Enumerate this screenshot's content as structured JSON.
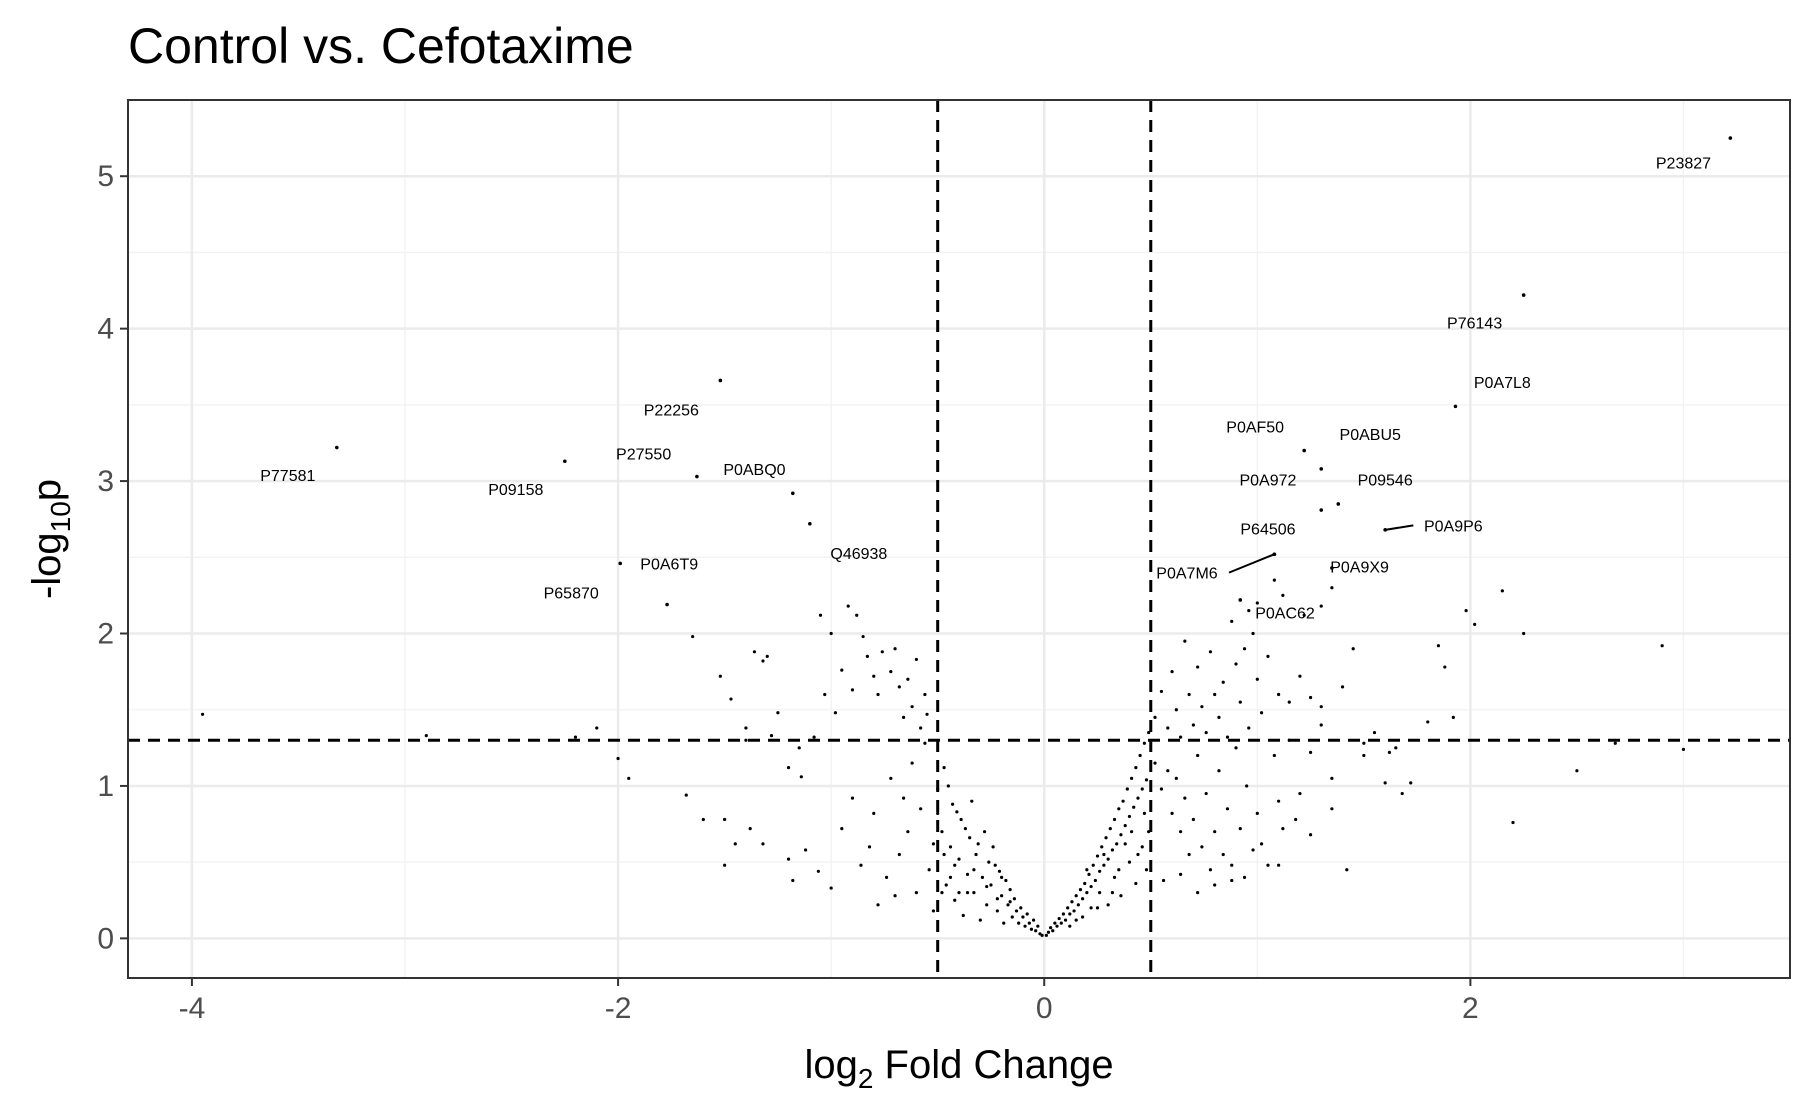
{
  "title": "Control vs. Cefotaxime",
  "chart_data": {
    "type": "scatter",
    "title": "Control vs. Cefotaxime",
    "xlabel_main": "log",
    "xlabel_sub": "2",
    "xlabel_rest": " Fold Change",
    "ylabel_main": "-log",
    "ylabel_sub": "10",
    "ylabel_rest": "p",
    "xlim": [
      -4.3,
      3.5
    ],
    "ylim": [
      -0.26,
      5.5
    ],
    "x_ticks": [
      -4,
      -2,
      0,
      2
    ],
    "x_tick_labels": [
      "-4",
      "-2",
      "0",
      "2"
    ],
    "y_ticks": [
      0,
      1,
      2,
      3,
      4,
      5
    ],
    "y_tick_labels": [
      "0",
      "1",
      "2",
      "3",
      "4",
      "5"
    ],
    "grid": true,
    "thresholds": {
      "x": [
        -0.5,
        0.5
      ],
      "y": 1.3
    },
    "labeled_points": [
      {
        "label": "P23827",
        "x": 3.22,
        "y": 5.25,
        "lx": 3.0,
        "ly": 5.05
      },
      {
        "label": "P76143",
        "x": 2.25,
        "y": 4.22,
        "lx": 2.02,
        "ly": 4.0
      },
      {
        "label": "P0A7L8",
        "x": 1.93,
        "y": 3.49,
        "lx": 2.15,
        "ly": 3.61
      },
      {
        "label": "P22256",
        "x": -1.52,
        "y": 3.66,
        "lx": -1.75,
        "ly": 3.43
      },
      {
        "label": "P77581",
        "x": -3.32,
        "y": 3.22,
        "lx": -3.55,
        "ly": 3.0
      },
      {
        "label": "P09158",
        "x": -2.25,
        "y": 3.13,
        "lx": -2.48,
        "ly": 2.91
      },
      {
        "label": "P27550",
        "x": -1.63,
        "y": 3.03,
        "lx": -1.88,
        "ly": 3.14
      },
      {
        "label": "P0ABQ0",
        "x": -1.18,
        "y": 2.92,
        "lx": -1.36,
        "ly": 3.04
      },
      {
        "label": "Q46938",
        "x": -1.1,
        "y": 2.72,
        "lx": -0.87,
        "ly": 2.49
      },
      {
        "label": "P0A6T9",
        "x": -1.99,
        "y": 2.46,
        "lx": -1.76,
        "ly": 2.42
      },
      {
        "label": "P65870",
        "x": -1.77,
        "y": 2.19,
        "lx": -2.22,
        "ly": 2.23
      },
      {
        "label": "P0AF50",
        "x": 1.22,
        "y": 3.2,
        "lx": 0.99,
        "ly": 3.32
      },
      {
        "label": "P0ABU5",
        "x": 1.3,
        "y": 3.08,
        "lx": 1.53,
        "ly": 3.27
      },
      {
        "label": "P0A972",
        "x": 1.3,
        "y": 2.81,
        "lx": 1.05,
        "ly": 2.97
      },
      {
        "label": "P09546",
        "x": 1.38,
        "y": 2.85,
        "lx": 1.6,
        "ly": 2.97
      },
      {
        "label": "P64506",
        "x": 1.08,
        "y": 2.52,
        "lx": 1.05,
        "ly": 2.65
      },
      {
        "label": "P0A9P6",
        "x": 1.6,
        "y": 2.68,
        "lx": 1.92,
        "ly": 2.67
      },
      {
        "label": "P0A7M6",
        "x": 1.08,
        "y": 2.52,
        "lx": 0.67,
        "ly": 2.36,
        "leader": true
      },
      {
        "label": "P0A9X9",
        "x": 1.35,
        "y": 2.43,
        "lx": 1.48,
        "ly": 2.4
      },
      {
        "label": "P0AC62",
        "x": 0.92,
        "y": 2.22,
        "lx": 1.13,
        "ly": 2.1
      }
    ],
    "points": [
      [
        -3.95,
        1.47
      ],
      [
        -2.9,
        1.33
      ],
      [
        -2.1,
        1.38
      ],
      [
        -2.2,
        1.32
      ],
      [
        -2.0,
        1.18
      ],
      [
        -1.95,
        1.05
      ],
      [
        -1.68,
        0.94
      ],
      [
        -1.6,
        0.78
      ],
      [
        -1.65,
        1.98
      ],
      [
        -1.52,
        1.72
      ],
      [
        -1.47,
        1.57
      ],
      [
        -1.4,
        1.38
      ],
      [
        -1.36,
        1.88
      ],
      [
        -1.32,
        1.82
      ],
      [
        -1.3,
        1.85
      ],
      [
        -1.28,
        1.33
      ],
      [
        -1.4,
        1.3
      ],
      [
        -1.25,
        1.48
      ],
      [
        -1.2,
        1.12
      ],
      [
        -1.15,
        1.25
      ],
      [
        -1.14,
        1.06
      ],
      [
        -1.08,
        1.32
      ],
      [
        -1.05,
        2.12
      ],
      [
        -1.03,
        1.6
      ],
      [
        -1.0,
        2.0
      ],
      [
        -0.98,
        1.48
      ],
      [
        -0.95,
        1.76
      ],
      [
        -0.92,
        2.18
      ],
      [
        -0.9,
        1.63
      ],
      [
        -0.88,
        2.12
      ],
      [
        -0.85,
        1.98
      ],
      [
        -0.83,
        1.85
      ],
      [
        -0.8,
        1.72
      ],
      [
        -0.78,
        1.6
      ],
      [
        -0.76,
        1.88
      ],
      [
        -0.72,
        1.75
      ],
      [
        -0.7,
        1.9
      ],
      [
        -0.68,
        1.65
      ],
      [
        -0.66,
        1.45
      ],
      [
        -0.64,
        1.7
      ],
      [
        -0.62,
        1.52
      ],
      [
        -0.6,
        1.83
      ],
      [
        -0.58,
        1.38
      ],
      [
        -0.56,
        1.6
      ],
      [
        -0.55,
        1.47
      ],
      [
        -1.5,
        0.78
      ],
      [
        -1.45,
        0.62
      ],
      [
        -1.5,
        0.48
      ],
      [
        -1.38,
        0.72
      ],
      [
        -1.32,
        0.62
      ],
      [
        -1.2,
        0.52
      ],
      [
        -1.18,
        0.38
      ],
      [
        -1.12,
        0.58
      ],
      [
        -1.06,
        0.44
      ],
      [
        -1.0,
        0.33
      ],
      [
        -0.95,
        0.72
      ],
      [
        -0.9,
        0.92
      ],
      [
        -0.86,
        0.48
      ],
      [
        -0.82,
        0.6
      ],
      [
        -0.8,
        0.82
      ],
      [
        -0.78,
        0.22
      ],
      [
        -0.74,
        0.4
      ],
      [
        -0.72,
        1.05
      ],
      [
        -0.7,
        0.28
      ],
      [
        -0.68,
        0.55
      ],
      [
        -0.66,
        0.92
      ],
      [
        -0.64,
        0.7
      ],
      [
        -0.62,
        1.15
      ],
      [
        -0.6,
        0.3
      ],
      [
        -0.58,
        0.85
      ],
      [
        -0.56,
        1.28
      ],
      [
        -0.54,
        0.45
      ],
      [
        -0.52,
        0.18
      ],
      [
        -0.5,
        0.98
      ],
      [
        -0.48,
        0.7
      ],
      [
        -0.47,
        1.12
      ],
      [
        -0.46,
        0.35
      ],
      [
        -0.44,
        0.6
      ],
      [
        -0.43,
        0.88
      ],
      [
        -0.42,
        0.25
      ],
      [
        -0.4,
        0.52
      ],
      [
        -0.39,
        0.78
      ],
      [
        -0.38,
        0.15
      ],
      [
        -0.36,
        0.42
      ],
      [
        -0.35,
        0.66
      ],
      [
        -0.34,
        0.9
      ],
      [
        -0.33,
        0.3
      ],
      [
        -0.32,
        0.55
      ],
      [
        -0.3,
        0.12
      ],
      [
        -0.29,
        0.4
      ],
      [
        -0.28,
        0.7
      ],
      [
        -0.27,
        0.22
      ],
      [
        -0.26,
        0.5
      ],
      [
        -0.25,
        0.35
      ],
      [
        -0.24,
        0.6
      ],
      [
        -0.22,
        0.18
      ],
      [
        -0.21,
        0.44
      ],
      [
        -0.2,
        0.28
      ],
      [
        -0.19,
        0.1
      ],
      [
        -0.18,
        0.38
      ],
      [
        -0.17,
        0.22
      ],
      [
        -0.16,
        0.32
      ],
      [
        -0.15,
        0.14
      ],
      [
        -0.14,
        0.26
      ],
      [
        -0.13,
        0.18
      ],
      [
        -0.12,
        0.1
      ],
      [
        -0.11,
        0.2
      ],
      [
        -0.1,
        0.14
      ],
      [
        -0.09,
        0.08
      ],
      [
        -0.08,
        0.16
      ],
      [
        -0.07,
        0.1
      ],
      [
        -0.06,
        0.06
      ],
      [
        -0.05,
        0.12
      ],
      [
        -0.04,
        0.05
      ],
      [
        -0.03,
        0.08
      ],
      [
        -0.02,
        0.03
      ],
      [
        -0.01,
        0.02
      ],
      [
        -0.45,
        1.0
      ],
      [
        -0.41,
        0.83
      ],
      [
        -0.37,
        0.72
      ],
      [
        -0.31,
        0.62
      ],
      [
        -0.23,
        0.48
      ],
      [
        -0.2,
        0.4
      ],
      [
        -0.16,
        0.24
      ],
      [
        -0.36,
        0.3
      ],
      [
        -0.42,
        0.48
      ],
      [
        -0.48,
        0.3
      ],
      [
        -0.52,
        0.62
      ],
      [
        -0.5,
        0.82
      ],
      [
        -0.47,
        0.55
      ],
      [
        -0.44,
        0.4
      ],
      [
        -0.4,
        0.3
      ],
      [
        -0.33,
        0.45
      ],
      [
        -0.27,
        0.34
      ],
      [
        -0.22,
        0.26
      ],
      [
        0.01,
        0.02
      ],
      [
        0.02,
        0.04
      ],
      [
        0.03,
        0.07
      ],
      [
        0.04,
        0.05
      ],
      [
        0.05,
        0.1
      ],
      [
        0.06,
        0.08
      ],
      [
        0.07,
        0.13
      ],
      [
        0.08,
        0.1
      ],
      [
        0.09,
        0.16
      ],
      [
        0.1,
        0.12
      ],
      [
        0.11,
        0.2
      ],
      [
        0.12,
        0.16
      ],
      [
        0.13,
        0.24
      ],
      [
        0.14,
        0.18
      ],
      [
        0.15,
        0.28
      ],
      [
        0.16,
        0.22
      ],
      [
        0.17,
        0.32
      ],
      [
        0.18,
        0.26
      ],
      [
        0.19,
        0.36
      ],
      [
        0.2,
        0.3
      ],
      [
        0.21,
        0.42
      ],
      [
        0.22,
        0.34
      ],
      [
        0.23,
        0.48
      ],
      [
        0.24,
        0.38
      ],
      [
        0.25,
        0.54
      ],
      [
        0.26,
        0.44
      ],
      [
        0.27,
        0.6
      ],
      [
        0.28,
        0.48
      ],
      [
        0.29,
        0.66
      ],
      [
        0.3,
        0.52
      ],
      [
        0.31,
        0.72
      ],
      [
        0.32,
        0.58
      ],
      [
        0.33,
        0.78
      ],
      [
        0.34,
        0.62
      ],
      [
        0.35,
        0.85
      ],
      [
        0.36,
        0.68
      ],
      [
        0.37,
        0.9
      ],
      [
        0.38,
        0.74
      ],
      [
        0.39,
        0.98
      ],
      [
        0.4,
        0.8
      ],
      [
        0.41,
        1.05
      ],
      [
        0.42,
        0.86
      ],
      [
        0.43,
        1.12
      ],
      [
        0.44,
        0.92
      ],
      [
        0.45,
        1.2
      ],
      [
        0.46,
        0.98
      ],
      [
        0.47,
        1.28
      ],
      [
        0.48,
        1.04
      ],
      [
        0.49,
        1.35
      ],
      [
        0.12,
        0.08
      ],
      [
        0.18,
        0.14
      ],
      [
        0.22,
        0.2
      ],
      [
        0.26,
        0.3
      ],
      [
        0.3,
        0.22
      ],
      [
        0.33,
        0.4
      ],
      [
        0.36,
        0.28
      ],
      [
        0.4,
        0.5
      ],
      [
        0.43,
        0.36
      ],
      [
        0.46,
        0.6
      ],
      [
        0.2,
        0.45
      ],
      [
        0.28,
        0.55
      ],
      [
        0.35,
        0.45
      ],
      [
        0.38,
        0.62
      ],
      [
        0.41,
        0.7
      ],
      [
        0.44,
        0.55
      ],
      [
        0.47,
        0.82
      ],
      [
        0.48,
        0.45
      ],
      [
        0.49,
        0.7
      ],
      [
        0.15,
        0.12
      ],
      [
        0.25,
        0.2
      ],
      [
        0.32,
        0.3
      ],
      [
        0.52,
        1.45
      ],
      [
        0.55,
        1.62
      ],
      [
        0.58,
        1.38
      ],
      [
        0.6,
        1.75
      ],
      [
        0.62,
        1.5
      ],
      [
        0.64,
        1.32
      ],
      [
        0.66,
        1.95
      ],
      [
        0.68,
        1.6
      ],
      [
        0.7,
        1.4
      ],
      [
        0.72,
        1.78
      ],
      [
        0.74,
        1.52
      ],
      [
        0.76,
        1.35
      ],
      [
        0.78,
        1.88
      ],
      [
        0.8,
        1.6
      ],
      [
        0.82,
        1.45
      ],
      [
        0.84,
        1.68
      ],
      [
        0.86,
        1.32
      ],
      [
        0.88,
        2.08
      ],
      [
        0.9,
        1.8
      ],
      [
        0.92,
        1.55
      ],
      [
        0.94,
        1.9
      ],
      [
        0.96,
        1.38
      ],
      [
        0.98,
        2.0
      ],
      [
        1.0,
        1.7
      ],
      [
        1.02,
        1.48
      ],
      [
        1.05,
        1.85
      ],
      [
        1.1,
        1.6
      ],
      [
        1.15,
        1.55
      ],
      [
        1.2,
        1.72
      ],
      [
        1.25,
        1.58
      ],
      [
        1.3,
        1.52
      ],
      [
        1.35,
        2.3
      ],
      [
        1.4,
        1.65
      ],
      [
        1.45,
        1.9
      ],
      [
        1.5,
        1.28
      ],
      [
        1.55,
        1.35
      ],
      [
        1.62,
        1.22
      ],
      [
        1.65,
        1.25
      ],
      [
        1.8,
        1.42
      ],
      [
        1.85,
        1.92
      ],
      [
        1.88,
        1.78
      ],
      [
        1.92,
        1.45
      ],
      [
        1.98,
        2.15
      ],
      [
        2.02,
        2.06
      ],
      [
        2.15,
        2.28
      ],
      [
        2.25,
        2.0
      ],
      [
        2.2,
        0.76
      ],
      [
        2.5,
        1.1
      ],
      [
        2.68,
        1.28
      ],
      [
        2.9,
        1.92
      ],
      [
        3.0,
        1.24
      ],
      [
        0.52,
        1.15
      ],
      [
        0.55,
        0.98
      ],
      [
        0.58,
        1.1
      ],
      [
        0.6,
        0.82
      ],
      [
        0.62,
        1.05
      ],
      [
        0.64,
        0.7
      ],
      [
        0.66,
        0.92
      ],
      [
        0.68,
        0.55
      ],
      [
        0.7,
        0.78
      ],
      [
        0.72,
        1.2
      ],
      [
        0.74,
        0.6
      ],
      [
        0.76,
        0.95
      ],
      [
        0.78,
        0.45
      ],
      [
        0.8,
        0.7
      ],
      [
        0.82,
        1.1
      ],
      [
        0.84,
        0.55
      ],
      [
        0.86,
        0.85
      ],
      [
        0.88,
        0.48
      ],
      [
        0.9,
        1.25
      ],
      [
        0.92,
        0.72
      ],
      [
        0.95,
        1.0
      ],
      [
        0.98,
        0.58
      ],
      [
        1.0,
        0.82
      ],
      [
        1.05,
        0.48
      ],
      [
        1.08,
        1.2
      ],
      [
        1.1,
        0.9
      ],
      [
        1.12,
        0.72
      ],
      [
        1.15,
        1.3
      ],
      [
        1.2,
        0.95
      ],
      [
        1.25,
        1.22
      ],
      [
        1.3,
        1.4
      ],
      [
        1.35,
        1.05
      ],
      [
        1.42,
        0.45
      ],
      [
        1.5,
        1.2
      ],
      [
        1.6,
        1.02
      ],
      [
        1.68,
        0.95
      ],
      [
        1.72,
        1.02
      ],
      [
        0.56,
        0.38
      ],
      [
        0.64,
        0.42
      ],
      [
        0.72,
        0.3
      ],
      [
        0.8,
        0.35
      ],
      [
        0.88,
        0.38
      ],
      [
        0.94,
        0.4
      ],
      [
        1.02,
        0.62
      ],
      [
        1.1,
        0.48
      ],
      [
        1.18,
        0.78
      ],
      [
        1.25,
        0.68
      ],
      [
        1.35,
        0.85
      ],
      [
        1.22,
        2.12
      ],
      [
        1.3,
        2.18
      ],
      [
        1.08,
        2.35
      ],
      [
        1.0,
        2.2
      ],
      [
        0.96,
        2.15
      ],
      [
        1.12,
        2.25
      ]
    ]
  }
}
